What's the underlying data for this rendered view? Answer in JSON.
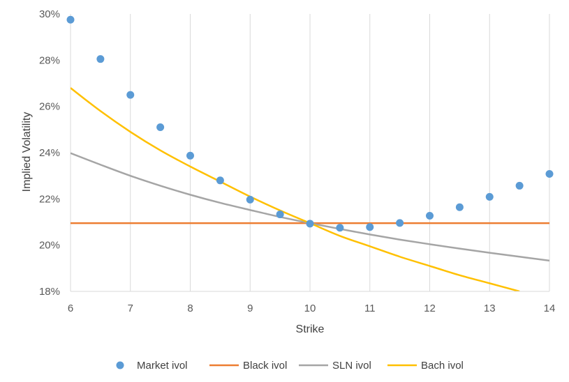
{
  "chart_data": {
    "type": "line",
    "xlabel": "Strike",
    "ylabel": "Implied Volatility",
    "xlim": [
      6,
      14
    ],
    "ylim": [
      0.18,
      0.3
    ],
    "x_ticks": [
      "6",
      "7",
      "8",
      "9",
      "10",
      "11",
      "12",
      "13",
      "14"
    ],
    "y_ticks": [
      "18%",
      "20%",
      "22%",
      "24%",
      "26%",
      "28%",
      "30%"
    ],
    "grid": "vertical",
    "legend_position": "bottom",
    "series": [
      {
        "name": "Market ivol",
        "kind": "scatter",
        "color": "#5B9BD5",
        "x": [
          6,
          6.5,
          7,
          7.5,
          8,
          8.5,
          9,
          9.5,
          10,
          10.5,
          11,
          11.5,
          12,
          12.5,
          13,
          13.5,
          14
        ],
        "values": [
          0.2975,
          0.2805,
          0.265,
          0.251,
          0.2387,
          0.228,
          0.2197,
          0.2133,
          0.2093,
          0.2075,
          0.2078,
          0.2096,
          0.2127,
          0.2164,
          0.2209,
          0.2257,
          0.2308
        ]
      },
      {
        "name": "Black ivol",
        "kind": "line",
        "color": "#ED7D31",
        "x": [
          6,
          14
        ],
        "values": [
          0.2095,
          0.2095
        ]
      },
      {
        "name": "SLN ivol",
        "kind": "line",
        "color": "#A5A5A5",
        "x": [
          6,
          6.5,
          7,
          7.5,
          8,
          8.5,
          9,
          9.5,
          10,
          10.5,
          11,
          11.5,
          12,
          12.5,
          13,
          13.5,
          14
        ],
        "values": [
          0.2398,
          0.2348,
          0.23,
          0.2257,
          0.2218,
          0.2183,
          0.2152,
          0.2122,
          0.2095,
          0.207,
          0.2046,
          0.2024,
          0.2004,
          0.1985,
          0.1967,
          0.195,
          0.1933
        ]
      },
      {
        "name": "Bach ivol",
        "kind": "line",
        "color": "#FFC000",
        "x": [
          6,
          6.5,
          7,
          7.5,
          8,
          8.5,
          9,
          9.5,
          10,
          10.5,
          11,
          11.5,
          12,
          12.5,
          13,
          13.5
        ],
        "values": [
          0.268,
          0.258,
          0.249,
          0.241,
          0.234,
          0.2275,
          0.221,
          0.215,
          0.2095,
          0.204,
          0.1995,
          0.195,
          0.191,
          0.187,
          0.1835,
          0.18
        ]
      }
    ]
  }
}
